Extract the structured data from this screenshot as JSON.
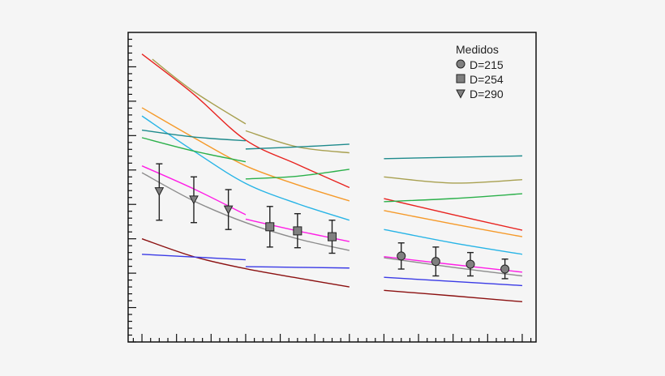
{
  "chart_data": {
    "type": "line",
    "title": "",
    "xlabel": "",
    "ylabel": "",
    "xlim": [
      -0.4,
      11.4
    ],
    "ylim": [
      0,
      9
    ],
    "grid": false,
    "legend": {
      "title": "Medidos",
      "placement": "top-right"
    },
    "background": "#f5f5f5",
    "series": [
      {
        "color": "#e8231f",
        "segments": [
          [
            [
              0,
              8.37
            ],
            [
              1.5,
              7.2
            ],
            [
              3,
              5.87
            ],
            [
              4.5,
              5.16
            ],
            [
              6,
              4.49
            ]
          ],
          [
            [
              7,
              4.17
            ],
            [
              9,
              3.7
            ],
            [
              11,
              3.25
            ]
          ]
        ]
      },
      {
        "color": "#a8a050",
        "segments": [
          [
            [
              0.3,
              8.22
            ],
            [
              1.5,
              7.28
            ],
            [
              3,
              6.34
            ]
          ],
          [
            [
              3,
              6.14
            ],
            [
              4.5,
              5.67
            ],
            [
              6,
              5.5
            ]
          ],
          [
            [
              7,
              4.8
            ],
            [
              9,
              4.62
            ],
            [
              11,
              4.72
            ]
          ]
        ]
      },
      {
        "color": "#f59a2a",
        "segments": [
          [
            [
              0,
              6.81
            ],
            [
              1.5,
              5.94
            ],
            [
              3,
              5.12
            ],
            [
              4.5,
              4.57
            ],
            [
              6,
              4.1
            ]
          ],
          [
            [
              7,
              3.82
            ],
            [
              9,
              3.43
            ],
            [
              11,
              3.06
            ]
          ]
        ]
      },
      {
        "color": "#27b4e6",
        "segments": [
          [
            [
              0,
              6.57
            ],
            [
              1.5,
              5.55
            ],
            [
              3,
              4.61
            ],
            [
              4.5,
              4.02
            ],
            [
              6,
              3.54
            ]
          ],
          [
            [
              7,
              3.27
            ],
            [
              9,
              2.88
            ],
            [
              11,
              2.55
            ]
          ]
        ]
      },
      {
        "color": "#1e8a8c",
        "segments": [
          [
            [
              0,
              6.16
            ],
            [
              1.5,
              5.96
            ],
            [
              3,
              5.85
            ]
          ],
          [
            [
              3,
              5.61
            ],
            [
              4.5,
              5.67
            ],
            [
              6,
              5.75
            ]
          ],
          [
            [
              7,
              5.33
            ],
            [
              9,
              5.37
            ],
            [
              11,
              5.41
            ]
          ]
        ]
      },
      {
        "color": "#2bb04a",
        "segments": [
          [
            [
              0,
              5.94
            ],
            [
              1.5,
              5.55
            ],
            [
              3,
              5.24
            ]
          ],
          [
            [
              3,
              4.74
            ],
            [
              4.5,
              4.82
            ],
            [
              6,
              5.02
            ]
          ],
          [
            [
              7,
              4.08
            ],
            [
              9,
              4.17
            ],
            [
              11,
              4.31
            ]
          ]
        ]
      },
      {
        "color": "#ff1ee6",
        "segments": [
          [
            [
              0,
              5.12
            ],
            [
              1.5,
              4.45
            ],
            [
              3,
              3.7
            ]
          ],
          [
            [
              3,
              3.57
            ],
            [
              4.5,
              3.23
            ],
            [
              6,
              2.92
            ]
          ],
          [
            [
              7,
              2.48
            ],
            [
              9,
              2.25
            ],
            [
              11,
              2.03
            ]
          ]
        ]
      },
      {
        "color": "#8c8c8c",
        "segments": [
          [
            [
              0,
              4.92
            ],
            [
              1.5,
              4.1
            ],
            [
              3,
              3.47
            ],
            [
              4.5,
              3.0
            ],
            [
              6,
              2.66
            ]
          ],
          [
            [
              7,
              2.45
            ],
            [
              9,
              2.17
            ],
            [
              11,
              1.92
            ]
          ]
        ]
      },
      {
        "color": "#8b1010",
        "segments": [
          [
            [
              0,
              3.0
            ],
            [
              1.5,
              2.48
            ],
            [
              3,
              2.13
            ],
            [
              4.5,
              1.86
            ],
            [
              6,
              1.6
            ]
          ],
          [
            [
              7,
              1.5
            ],
            [
              9,
              1.34
            ],
            [
              11,
              1.17
            ]
          ]
        ]
      },
      {
        "color": "#3a3ae6",
        "segments": [
          [
            [
              0,
              2.55
            ],
            [
              1.5,
              2.47
            ],
            [
              3,
              2.39
            ]
          ],
          [
            [
              3,
              2.19
            ],
            [
              4.5,
              2.17
            ],
            [
              6,
              2.15
            ]
          ],
          [
            [
              7,
              1.88
            ],
            [
              9,
              1.76
            ],
            [
              11,
              1.64
            ]
          ]
        ]
      }
    ],
    "measured": [
      {
        "name": "D=215",
        "marker": "circle",
        "points": [
          {
            "x": 7.5,
            "y": 2.5,
            "ylo": 2.12,
            "yhi": 2.88
          },
          {
            "x": 8.5,
            "y": 2.34,
            "ylo": 1.92,
            "yhi": 2.76
          },
          {
            "x": 9.5,
            "y": 2.26,
            "ylo": 1.92,
            "yhi": 2.6
          },
          {
            "x": 10.5,
            "y": 2.12,
            "ylo": 1.84,
            "yhi": 2.41
          }
        ]
      },
      {
        "name": "D=254",
        "marker": "square",
        "points": [
          {
            "x": 3.7,
            "y": 3.35,
            "ylo": 2.76,
            "yhi": 3.94
          },
          {
            "x": 4.5,
            "y": 3.23,
            "ylo": 2.74,
            "yhi": 3.73
          },
          {
            "x": 5.5,
            "y": 3.06,
            "ylo": 2.58,
            "yhi": 3.54
          }
        ]
      },
      {
        "name": "D=290",
        "marker": "triangle-down",
        "points": [
          {
            "x": 0.5,
            "y": 4.39,
            "ylo": 3.54,
            "yhi": 5.18
          },
          {
            "x": 1.5,
            "y": 4.15,
            "ylo": 3.47,
            "yhi": 4.8
          },
          {
            "x": 2.5,
            "y": 3.86,
            "ylo": 3.27,
            "yhi": 4.43
          }
        ]
      }
    ],
    "marker_color": "#808080"
  }
}
